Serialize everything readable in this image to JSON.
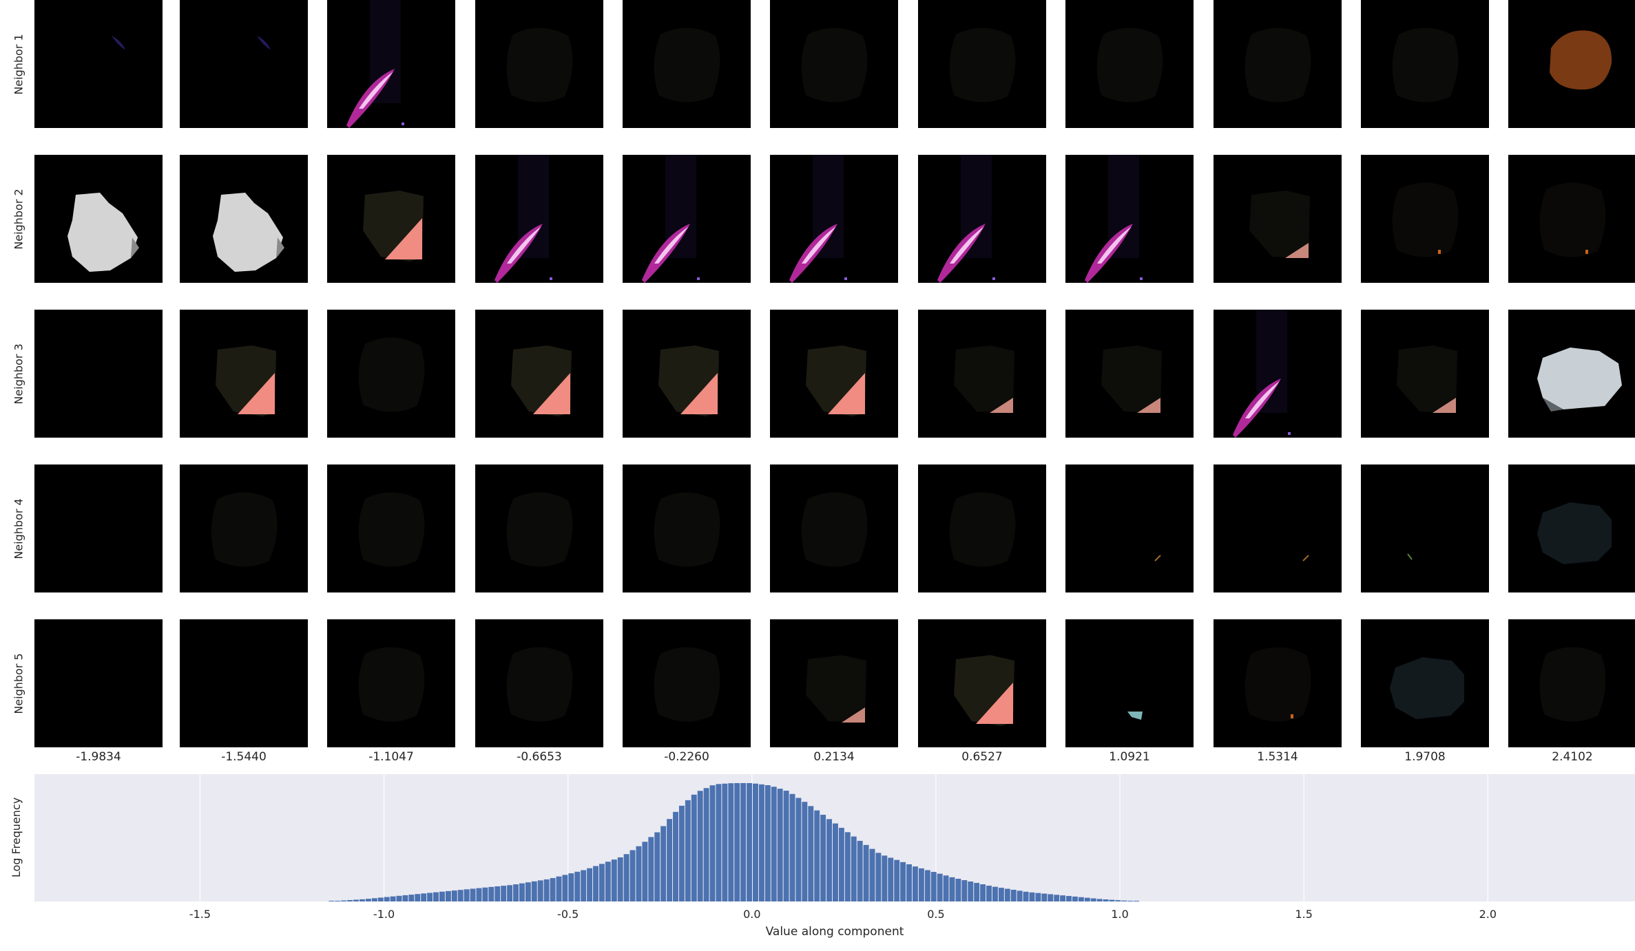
{
  "grid": {
    "row_labels": [
      "Neighbor 1",
      "Neighbor 2",
      "Neighbor 3",
      "Neighbor 4",
      "Neighbor 5"
    ],
    "column_values": [
      "-1.9834",
      "-1.5440",
      "-1.1047",
      "-0.6653",
      "-0.2260",
      "0.2134",
      "0.6527",
      "1.0921",
      "1.5314",
      "1.9708",
      "2.4102"
    ],
    "cells": [
      [
        "faint-blue-streak",
        "faint-blue-streak",
        "pink-streak",
        "dim-blob",
        "dim-blob",
        "dim-blob",
        "dim-blob",
        "dim-blob",
        "dim-blob",
        "dim-blob",
        "brown-blob"
      ],
      [
        "gray-blob",
        "gray-blob",
        "dark-pink-corner",
        "pink-streak",
        "pink-streak",
        "pink-streak",
        "pink-streak",
        "pink-streak",
        "dark-small-pink",
        "dim-orange-spot",
        "dim-orange-spot"
      ],
      [
        "dark",
        "dark-pink-corner",
        "dim-blob",
        "dark-pink-corner",
        "dark-pink-corner",
        "dark-pink-corner",
        "dark-small-pink",
        "dark-small-pink",
        "pink-streak",
        "dark-small-pink",
        "light-gray-blob"
      ],
      [
        "dark",
        "dim-blob",
        "dim-blob",
        "dim-blob",
        "dim-blob",
        "dim-blob",
        "dim-blob",
        "tiny-orange-line",
        "tiny-orange-line",
        "tiny-green-line",
        "slate-blob"
      ],
      [
        "dark",
        "dark",
        "dim-blob",
        "dim-blob",
        "dim-blob",
        "dark-small-pink",
        "dark-pink-corner",
        "tiny-cyan",
        "dim-orange-spot",
        "slate-blob",
        "dim-blob"
      ]
    ]
  },
  "chart_data": {
    "type": "bar",
    "title": "",
    "xlabel": "Value along component",
    "ylabel": "Log Frequency",
    "xlim": [
      -1.95,
      2.4
    ],
    "x_ticks": [
      "-1.5",
      "-1.0",
      "-0.5",
      "0.0",
      "0.5",
      "1.0",
      "1.5",
      "2.0"
    ],
    "x_tick_values": [
      -1.5,
      -1.0,
      -0.5,
      0.0,
      0.5,
      1.0,
      1.5,
      2.0
    ],
    "grid": true,
    "bar_color": "#4c72b0",
    "background_color": "#eaeaf2",
    "bin_width": 0.0167,
    "y_units": "fraction of peak height",
    "x": [
      -1.15,
      -1.05,
      -0.95,
      -0.85,
      -0.75,
      -0.65,
      -0.55,
      -0.45,
      -0.35,
      -0.3,
      -0.25,
      -0.2,
      -0.15,
      -0.1,
      -0.05,
      0.0,
      0.05,
      0.1,
      0.15,
      0.2,
      0.25,
      0.3,
      0.35,
      0.45,
      0.55,
      0.65,
      0.75,
      0.85,
      0.95,
      1.0,
      1.05
    ],
    "y": [
      0.0,
      0.02,
      0.05,
      0.08,
      0.11,
      0.14,
      0.19,
      0.27,
      0.38,
      0.48,
      0.6,
      0.78,
      0.92,
      0.99,
      1.0,
      1.0,
      0.98,
      0.93,
      0.83,
      0.72,
      0.61,
      0.5,
      0.4,
      0.29,
      0.2,
      0.13,
      0.08,
      0.05,
      0.02,
      0.01,
      0.0
    ]
  }
}
